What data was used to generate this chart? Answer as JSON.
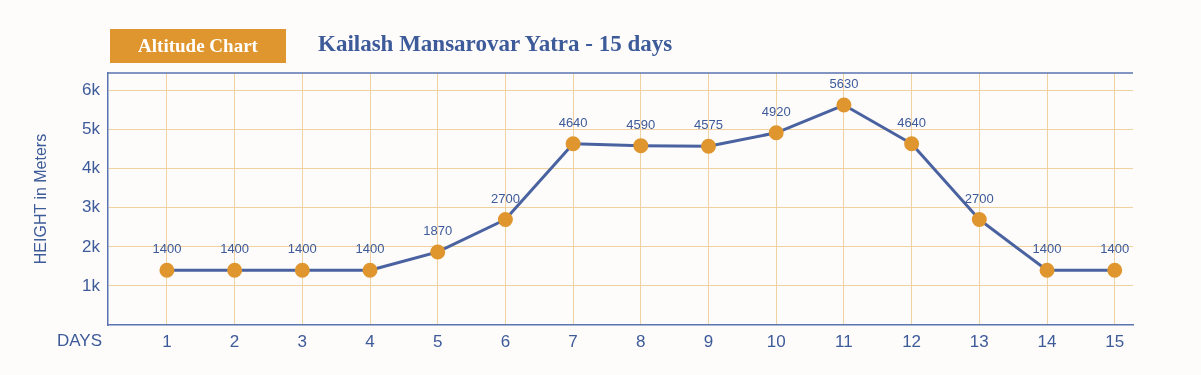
{
  "chart_data": {
    "type": "line",
    "title": "Kailash Mansarovar Yatra - 15 days",
    "subtitle": "Altitude Chart",
    "xlabel": "DAYS",
    "ylabel": "HEIGHT in Meters",
    "x": [
      1,
      2,
      3,
      4,
      5,
      6,
      7,
      8,
      9,
      10,
      11,
      12,
      13,
      14,
      15
    ],
    "xlim": [
      0.13,
      15.27
    ],
    "xticks": [
      1,
      2,
      3,
      4,
      5,
      6,
      7,
      8,
      9,
      10,
      11,
      12,
      13,
      14,
      15
    ],
    "series": [
      {
        "color": "#4a63a0",
        "colors": [
          "#e0962e",
          "#e0962e",
          "#e0962e",
          "#e0962e",
          "#e0962e",
          "#e0962e",
          "#e0962e",
          "#e0962e",
          "#e0962e",
          "#e0962e",
          "#e0962e",
          "#e0962e",
          "#e0962e",
          "#e0962e",
          "#e0962e"
        ],
        "values": [
          1400,
          1400,
          1400,
          1400,
          1870,
          2700,
          4640,
          4590,
          4575,
          4920,
          5630,
          4640,
          2700,
          1400,
          1400
        ]
      }
    ],
    "ylim": [
      0,
      6450
    ],
    "yticks": [
      {
        "value": 1000,
        "label": "1k"
      },
      {
        "value": 2000,
        "label": "2k"
      },
      {
        "value": 3000,
        "label": "3k"
      },
      {
        "value": 4000,
        "label": "4k"
      },
      {
        "value": 5000,
        "label": "5k"
      },
      {
        "value": 6000,
        "label": "6k"
      }
    ],
    "grid": true,
    "legend": false,
    "marker": "circle",
    "line_style": "solid",
    "data_labels": true
  }
}
